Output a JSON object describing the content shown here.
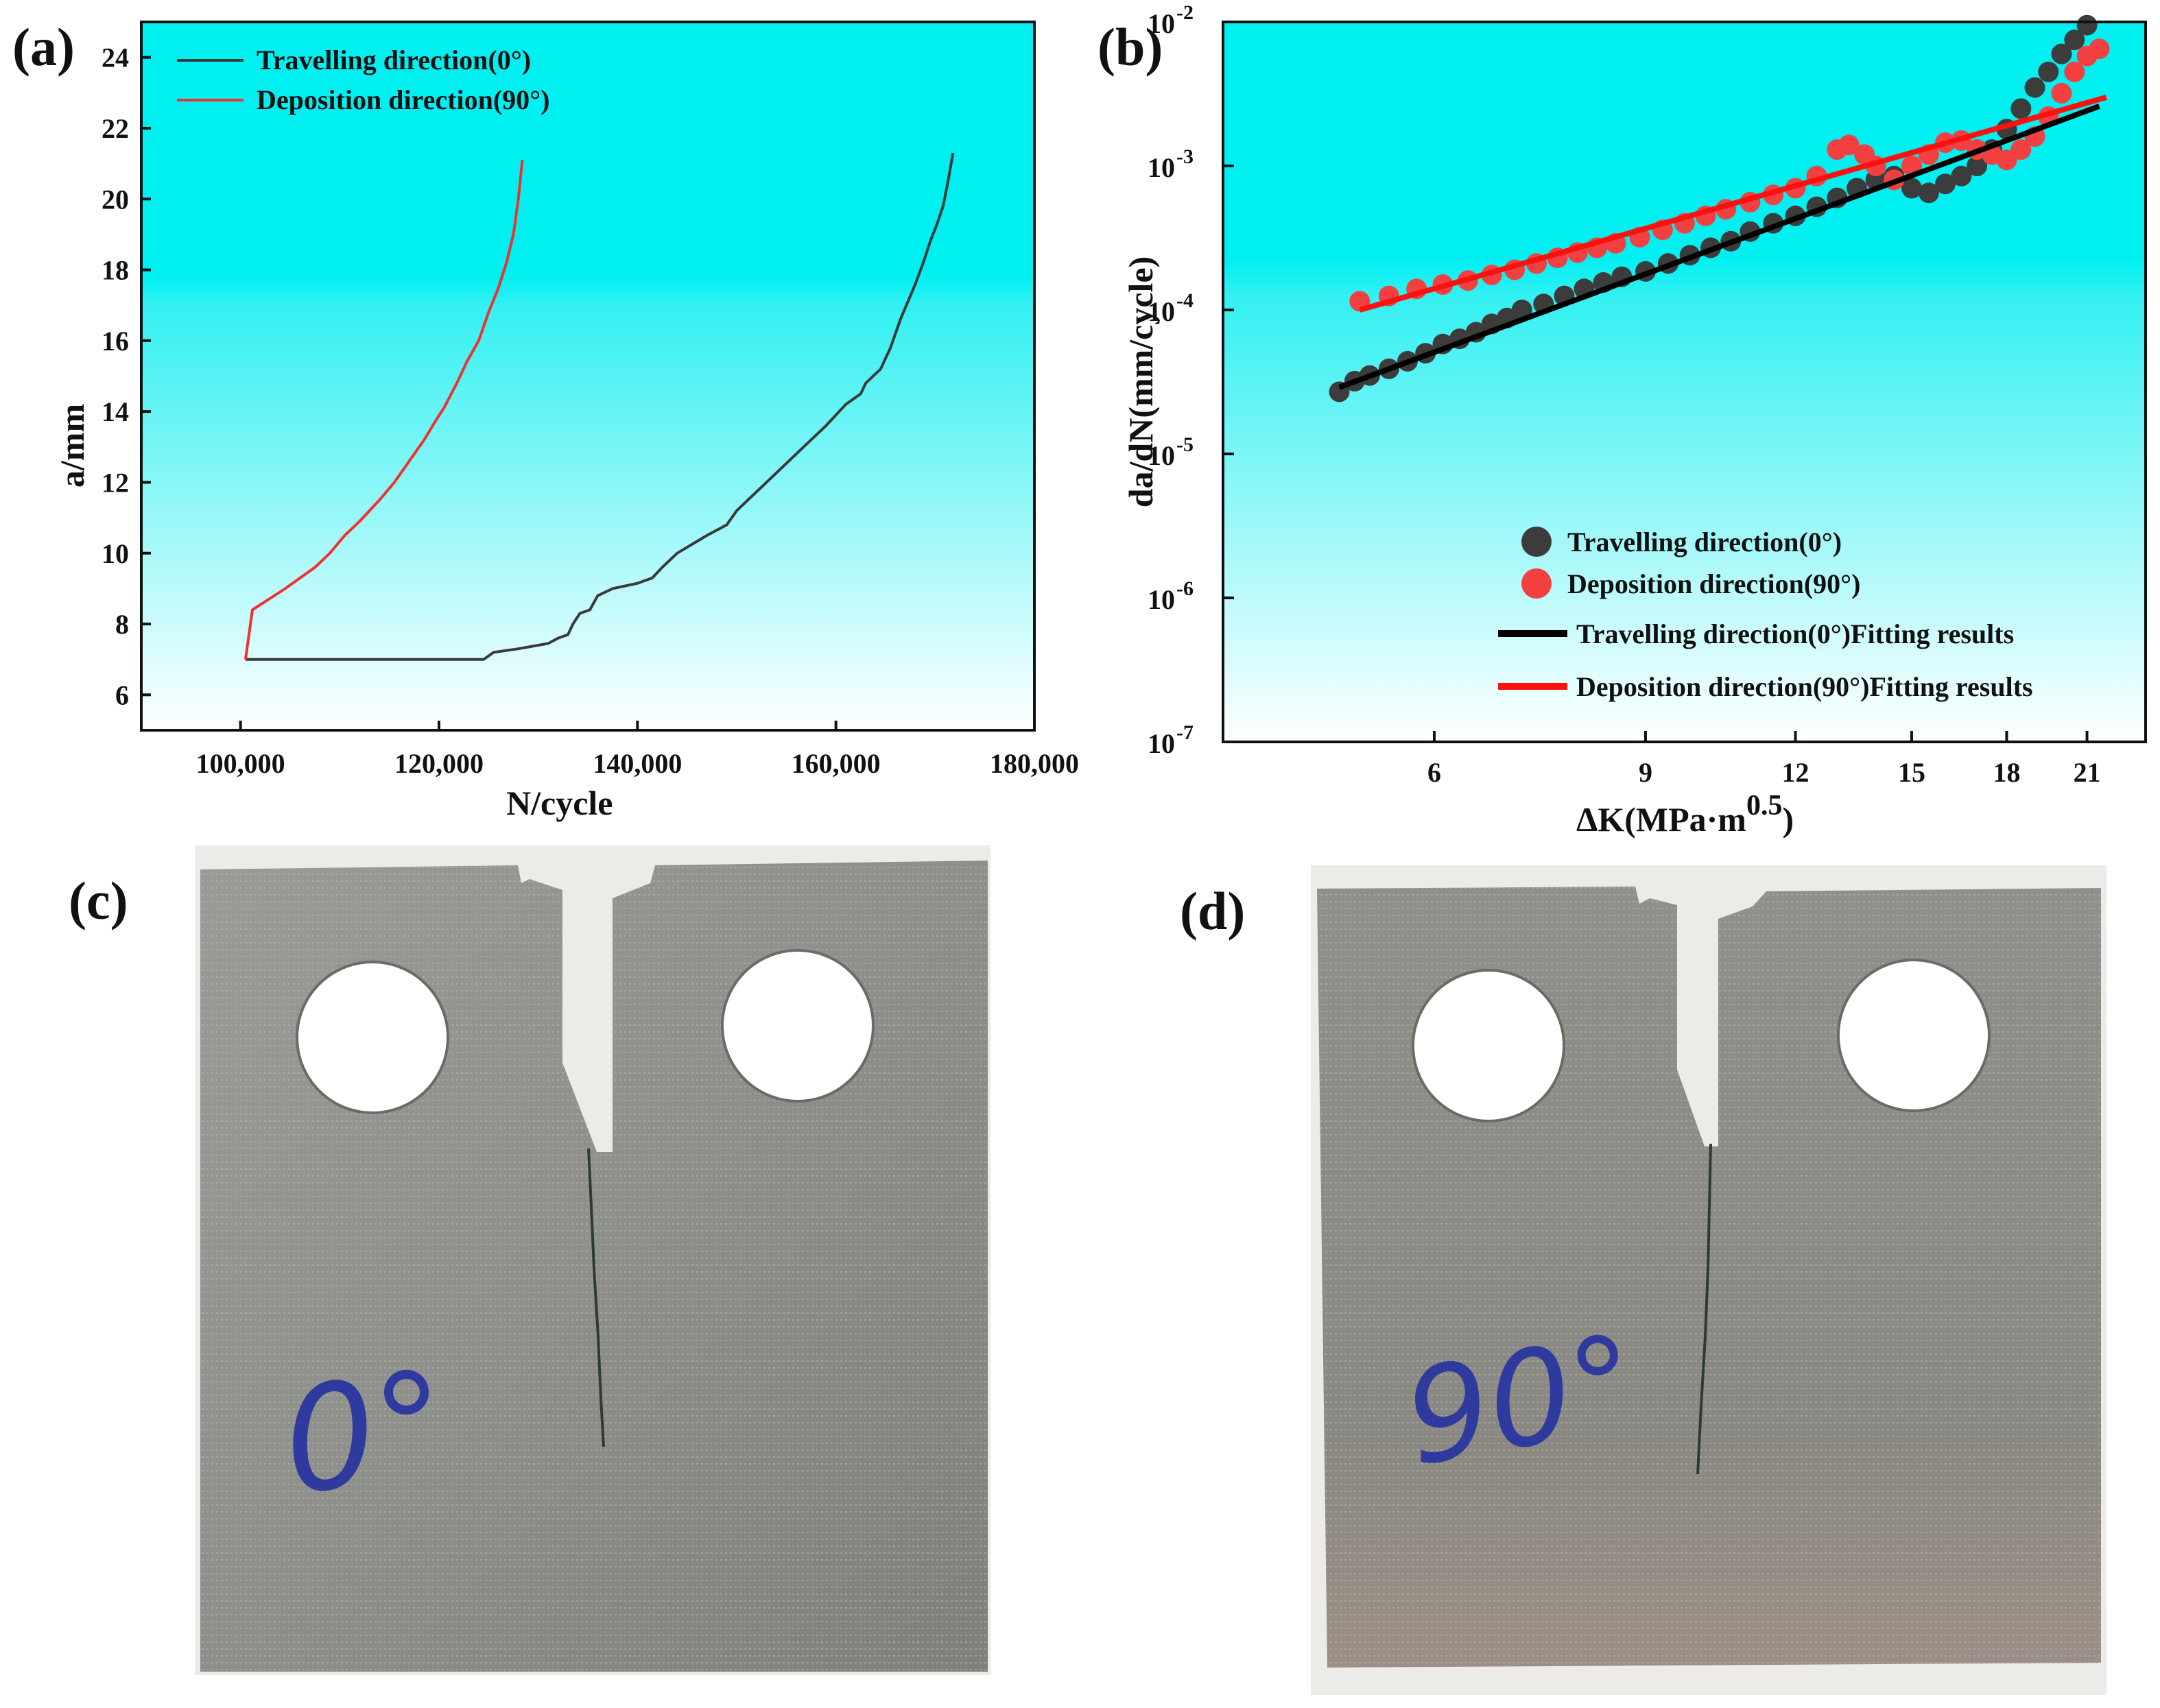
{
  "panels": {
    "a": "(a)",
    "b": "(b)",
    "c": "(c)",
    "d": "(d)"
  },
  "chart_data": [
    {
      "type": "line",
      "panel": "(a)",
      "xlabel": "N/cycle",
      "ylabel": "a/mm",
      "xlim": [
        90000,
        180000
      ],
      "ylim": [
        5,
        25
      ],
      "xticks": [
        100000,
        120000,
        140000,
        160000,
        180000
      ],
      "xtick_labels": [
        "100,000",
        "120,000",
        "140,000",
        "160,000",
        "180,000"
      ],
      "yticks": [
        6,
        8,
        10,
        12,
        14,
        16,
        18,
        20,
        22,
        24
      ],
      "ytick_labels": [
        "6",
        "8",
        "10",
        "12",
        "14",
        "16",
        "18",
        "20",
        "22",
        "24"
      ],
      "legend_position": "top-left",
      "colors": {
        "black": "#3a3a3a",
        "red": "#f03030",
        "bg_top": "#00f0f2",
        "bg_bottom": "#ffffff"
      },
      "series": [
        {
          "name": "Travelling direction(0°)",
          "color": "#3a3a3a",
          "x": [
            100500,
            112000,
            124500,
            125500,
            128000,
            131000,
            132000,
            133000,
            133500,
            134200,
            135200,
            136000,
            137500,
            140000,
            141500,
            142500,
            144000,
            147000,
            149000,
            150000,
            153000,
            156000,
            159000,
            161000,
            162500,
            163000,
            164500,
            165500,
            166500,
            168000,
            168800,
            169500,
            170200,
            170800,
            171300,
            171800
          ],
          "y": [
            7.0,
            7.0,
            7.0,
            7.2,
            7.3,
            7.45,
            7.6,
            7.7,
            8.0,
            8.3,
            8.4,
            8.8,
            9.0,
            9.15,
            9.3,
            9.6,
            10.0,
            10.5,
            10.8,
            11.2,
            12.0,
            12.8,
            13.6,
            14.2,
            14.5,
            14.8,
            15.2,
            15.8,
            16.6,
            17.6,
            18.2,
            18.8,
            19.3,
            19.8,
            20.5,
            21.3
          ]
        },
        {
          "name": "Deposition direction(90°)",
          "color": "#f03030",
          "x": [
            100500,
            101200,
            104500,
            107500,
            109000,
            110500,
            112000,
            114000,
            115500,
            117000,
            118500,
            119800,
            120500,
            121800,
            122800,
            124000,
            125000,
            126000,
            126800,
            127500,
            128000,
            128400
          ],
          "y": [
            7.0,
            8.4,
            9.0,
            9.6,
            10.0,
            10.5,
            10.9,
            11.5,
            12.0,
            12.6,
            13.2,
            13.8,
            14.1,
            14.8,
            15.4,
            16.0,
            16.8,
            17.5,
            18.2,
            19.0,
            20.0,
            21.1
          ]
        }
      ]
    },
    {
      "type": "scatter",
      "panel": "(b)",
      "xlabel": "ΔK(MPa·m",
      "xlabel_superscript": "0.5",
      "xlabel_close": ")",
      "ylabel": "da/dN(mm/cycle)",
      "xscale": "log",
      "yscale": "log",
      "xlim": [
        4.0,
        23.5
      ],
      "ylim": [
        1e-07,
        0.01
      ],
      "xticks": [
        6,
        9,
        12,
        15,
        18,
        21
      ],
      "xtick_labels": [
        "6",
        "9",
        "12",
        "15",
        "18",
        "21"
      ],
      "yticks": [
        1e-07,
        1e-06,
        1e-05,
        0.0001,
        0.001,
        0.01
      ],
      "ytick_labels": [
        {
          "base": "10",
          "exp": "-7"
        },
        {
          "base": "10",
          "exp": "-6"
        },
        {
          "base": "10",
          "exp": "-5"
        },
        {
          "base": "10",
          "exp": "-4"
        },
        {
          "base": "10",
          "exp": "-3"
        },
        {
          "base": "10",
          "exp": "-2"
        }
      ],
      "legend_position": "bottom-right",
      "series": [
        {
          "name": "Travelling direction(0°)",
          "kind": "points",
          "color": "#3c3c3c",
          "x": [
            5.0,
            5.15,
            5.3,
            5.5,
            5.7,
            5.9,
            6.1,
            6.3,
            6.5,
            6.7,
            6.9,
            7.1,
            7.4,
            7.7,
            8.0,
            8.3,
            8.6,
            9.0,
            9.4,
            9.8,
            10.2,
            10.6,
            11.0,
            11.5,
            12.0,
            12.5,
            13.0,
            13.5,
            14.0,
            14.5,
            15.0,
            15.5,
            16.0,
            16.5,
            17.0,
            17.5,
            18.0,
            18.5,
            19.0,
            19.5,
            20.0,
            20.5,
            21.0
          ],
          "y": [
            2.7e-05,
            3.2e-05,
            3.5e-05,
            3.9e-05,
            4.4e-05,
            5e-05,
            5.8e-05,
            6.3e-05,
            7e-05,
            8e-05,
            8.8e-05,
            0.0001,
            0.00011,
            0.000125,
            0.00014,
            0.000155,
            0.00017,
            0.000185,
            0.00021,
            0.00024,
            0.00027,
            0.0003,
            0.00035,
            0.0004,
            0.00045,
            0.00052,
            0.0006,
            0.0007,
            0.0008,
            0.00085,
            0.0007,
            0.00065,
            0.00075,
            0.00085,
            0.001,
            0.0013,
            0.0018,
            0.0025,
            0.0035,
            0.0045,
            0.006,
            0.0075,
            0.0095
          ]
        },
        {
          "name": "Deposition  direction(90°)",
          "kind": "points",
          "color": "#f24040",
          "x": [
            5.2,
            5.5,
            5.8,
            6.1,
            6.4,
            6.7,
            7.0,
            7.3,
            7.6,
            7.9,
            8.2,
            8.5,
            8.9,
            9.3,
            9.7,
            10.1,
            10.5,
            11.0,
            11.5,
            12.0,
            12.5,
            13.0,
            13.3,
            13.7,
            14.0,
            14.5,
            15.0,
            15.5,
            16.0,
            16.5,
            17.0,
            17.5,
            18.0,
            18.5,
            19.0,
            19.5,
            20.0,
            20.5,
            21.0,
            21.5
          ],
          "y": [
            0.000115,
            0.000125,
            0.00014,
            0.00015,
            0.00016,
            0.000175,
            0.00019,
            0.00021,
            0.00023,
            0.00025,
            0.00027,
            0.00029,
            0.00032,
            0.00036,
            0.0004,
            0.00045,
            0.0005,
            0.00056,
            0.00063,
            0.0007,
            0.00085,
            0.0013,
            0.0014,
            0.0012,
            0.001,
            0.0008,
            0.001,
            0.0012,
            0.00145,
            0.0015,
            0.0013,
            0.0012,
            0.0011,
            0.0013,
            0.0016,
            0.0022,
            0.0032,
            0.0045,
            0.0058,
            0.0065
          ]
        },
        {
          "name": "Travelling direction(0°)Fitting results",
          "kind": "fit",
          "color": "#000000",
          "x": [
            5.0,
            21.5
          ],
          "y": [
            2.9e-05,
            0.0026
          ]
        },
        {
          "name": "Deposition direction(90°)Fitting results",
          "kind": "fit",
          "color": "#ff1010",
          "x": [
            5.2,
            21.8
          ],
          "y": [
            0.0001,
            0.003
          ]
        }
      ]
    }
  ],
  "photos": {
    "c": {
      "marking": "0°",
      "plate_color": "#8e8f8a"
    },
    "d": {
      "marking": "90°",
      "plate_color": "#8a8a84"
    }
  }
}
